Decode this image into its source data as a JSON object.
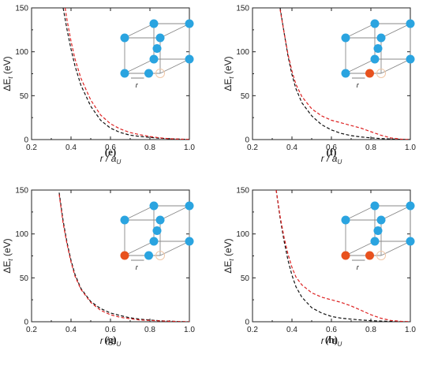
{
  "chart_data": [
    {
      "type": "line",
      "panel_label": "(e)",
      "xlabel": "r / a",
      "xlabel_sub": "U",
      "ylabel": "ΔE",
      "ylabel_sub": "t",
      "ylabel_unit": " (eV)",
      "xlim": [
        0.2,
        1.0
      ],
      "ylim": [
        0,
        150
      ],
      "xticks": [
        "0.2",
        "0.4",
        "0.6",
        "0.8",
        "1.0"
      ],
      "yticks": [
        "0",
        "50",
        "100",
        "150"
      ],
      "inset_label": "r",
      "inset_highlight": "none",
      "series": [
        {
          "color": "#111111",
          "x": [
            0.36,
            0.38,
            0.4,
            0.42,
            0.45,
            0.5,
            0.55,
            0.6,
            0.65,
            0.7,
            0.75,
            0.8,
            0.85,
            0.9,
            0.95,
            1.0
          ],
          "y": [
            150,
            125,
            103,
            84,
            62,
            38,
            22,
            13,
            8,
            5,
            3.5,
            2.5,
            1.5,
            1,
            0.5,
            0.2
          ]
        },
        {
          "color": "#dd2222",
          "x": [
            0.37,
            0.38,
            0.4,
            0.42,
            0.45,
            0.5,
            0.55,
            0.6,
            0.65,
            0.7,
            0.75,
            0.8,
            0.85,
            0.9,
            0.95,
            1.0
          ],
          "y": [
            150,
            136,
            112,
            92,
            70,
            45,
            28,
            18,
            12,
            8,
            5.5,
            3.5,
            2,
            1,
            0.5,
            0.2
          ]
        }
      ]
    },
    {
      "type": "line",
      "panel_label": "(f)",
      "xlabel": "r / a",
      "xlabel_sub": "U",
      "ylabel": "ΔE",
      "ylabel_sub": "t",
      "ylabel_unit": " (eV)",
      "xlim": [
        0.2,
        1.0
      ],
      "ylim": [
        0,
        150
      ],
      "xticks": [
        "0.2",
        "0.4",
        "0.6",
        "0.8",
        "1.0"
      ],
      "yticks": [
        "0",
        "50",
        "100",
        "150"
      ],
      "inset_label": "r",
      "inset_highlight": "orange-bottom",
      "series": [
        {
          "color": "#111111",
          "x": [
            0.34,
            0.36,
            0.38,
            0.4,
            0.42,
            0.45,
            0.5,
            0.55,
            0.6,
            0.65,
            0.7,
            0.75,
            0.8,
            0.85,
            0.9,
            0.95,
            1.0
          ],
          "y": [
            150,
            122,
            95,
            74,
            58,
            42,
            27,
            17,
            11,
            7,
            4.5,
            3,
            2,
            1.2,
            0.7,
            0.3,
            0
          ]
        },
        {
          "color": "#dd2222",
          "x": [
            0.34,
            0.36,
            0.38,
            0.4,
            0.42,
            0.45,
            0.5,
            0.55,
            0.6,
            0.65,
            0.7,
            0.75,
            0.8,
            0.85,
            0.9,
            0.95,
            1.0
          ],
          "y": [
            148,
            122,
            97,
            78,
            63,
            49,
            35,
            27,
            22,
            19,
            16,
            13,
            9,
            5,
            2,
            0.5,
            0
          ]
        }
      ]
    },
    {
      "type": "line",
      "panel_label": "(g)",
      "xlabel": "r / a",
      "xlabel_sub": "U",
      "ylabel": "ΔE",
      "ylabel_sub": "t",
      "ylabel_unit": " (eV)",
      "xlim": [
        0.2,
        1.0
      ],
      "ylim": [
        0,
        150
      ],
      "xticks": [
        "0.2",
        "0.4",
        "0.6",
        "0.8",
        "1.0"
      ],
      "yticks": [
        "0",
        "50",
        "100",
        "150"
      ],
      "inset_label": "r",
      "inset_highlight": "orange-left",
      "series": [
        {
          "color": "#111111",
          "x": [
            0.34,
            0.36,
            0.38,
            0.4,
            0.42,
            0.45,
            0.5,
            0.55,
            0.6,
            0.65,
            0.7,
            0.75,
            0.8,
            0.85,
            0.9,
            0.95,
            1.0
          ],
          "y": [
            147,
            115,
            90,
            70,
            54,
            38,
            23,
            15,
            10,
            7,
            4.5,
            3,
            2,
            1.2,
            0.6,
            0.3,
            0
          ]
        },
        {
          "color": "#dd2222",
          "x": [
            0.34,
            0.36,
            0.38,
            0.4,
            0.42,
            0.45,
            0.5,
            0.55,
            0.6,
            0.65,
            0.7,
            0.75,
            0.8,
            0.85,
            0.9,
            0.95,
            1.0
          ],
          "y": [
            145,
            112,
            88,
            68,
            52,
            37,
            22,
            13,
            8,
            5,
            3.5,
            2,
            1.5,
            1,
            0.5,
            0.2,
            0
          ]
        }
      ]
    },
    {
      "type": "line",
      "panel_label": "(h)",
      "xlabel": "r / a",
      "xlabel_sub": "U",
      "ylabel": "ΔE",
      "ylabel_sub": "t",
      "ylabel_unit": " (eV)",
      "xlim": [
        0.2,
        1.0
      ],
      "ylim": [
        0,
        150
      ],
      "xticks": [
        "0.2",
        "0.4",
        "0.6",
        "0.8",
        "1.0"
      ],
      "yticks": [
        "0",
        "50",
        "100",
        "150"
      ],
      "inset_label": "r",
      "inset_highlight": "orange-left-and-bottom",
      "series": [
        {
          "color": "#111111",
          "x": [
            0.32,
            0.34,
            0.36,
            0.38,
            0.4,
            0.42,
            0.45,
            0.5,
            0.55,
            0.6,
            0.65,
            0.7,
            0.75,
            0.8,
            0.85,
            0.9,
            0.95,
            1.0
          ],
          "y": [
            150,
            118,
            92,
            70,
            53,
            40,
            28,
            16,
            10,
            6,
            4,
            3,
            2,
            1.3,
            0.8,
            0.4,
            0.2,
            0
          ]
        },
        {
          "color": "#dd2222",
          "x": [
            0.32,
            0.34,
            0.36,
            0.38,
            0.4,
            0.42,
            0.45,
            0.5,
            0.55,
            0.6,
            0.65,
            0.7,
            0.75,
            0.8,
            0.85,
            0.9,
            0.95,
            1.0
          ],
          "y": [
            150,
            120,
            96,
            77,
            62,
            51,
            42,
            33,
            28,
            25,
            22,
            18,
            13,
            8,
            4,
            1.5,
            0.5,
            0
          ]
        }
      ]
    }
  ],
  "colors": {
    "atom_blue": "#2aa4e0",
    "atom_orange": "#e8521e",
    "black_curve": "#111111",
    "red_curve": "#dd2222"
  }
}
